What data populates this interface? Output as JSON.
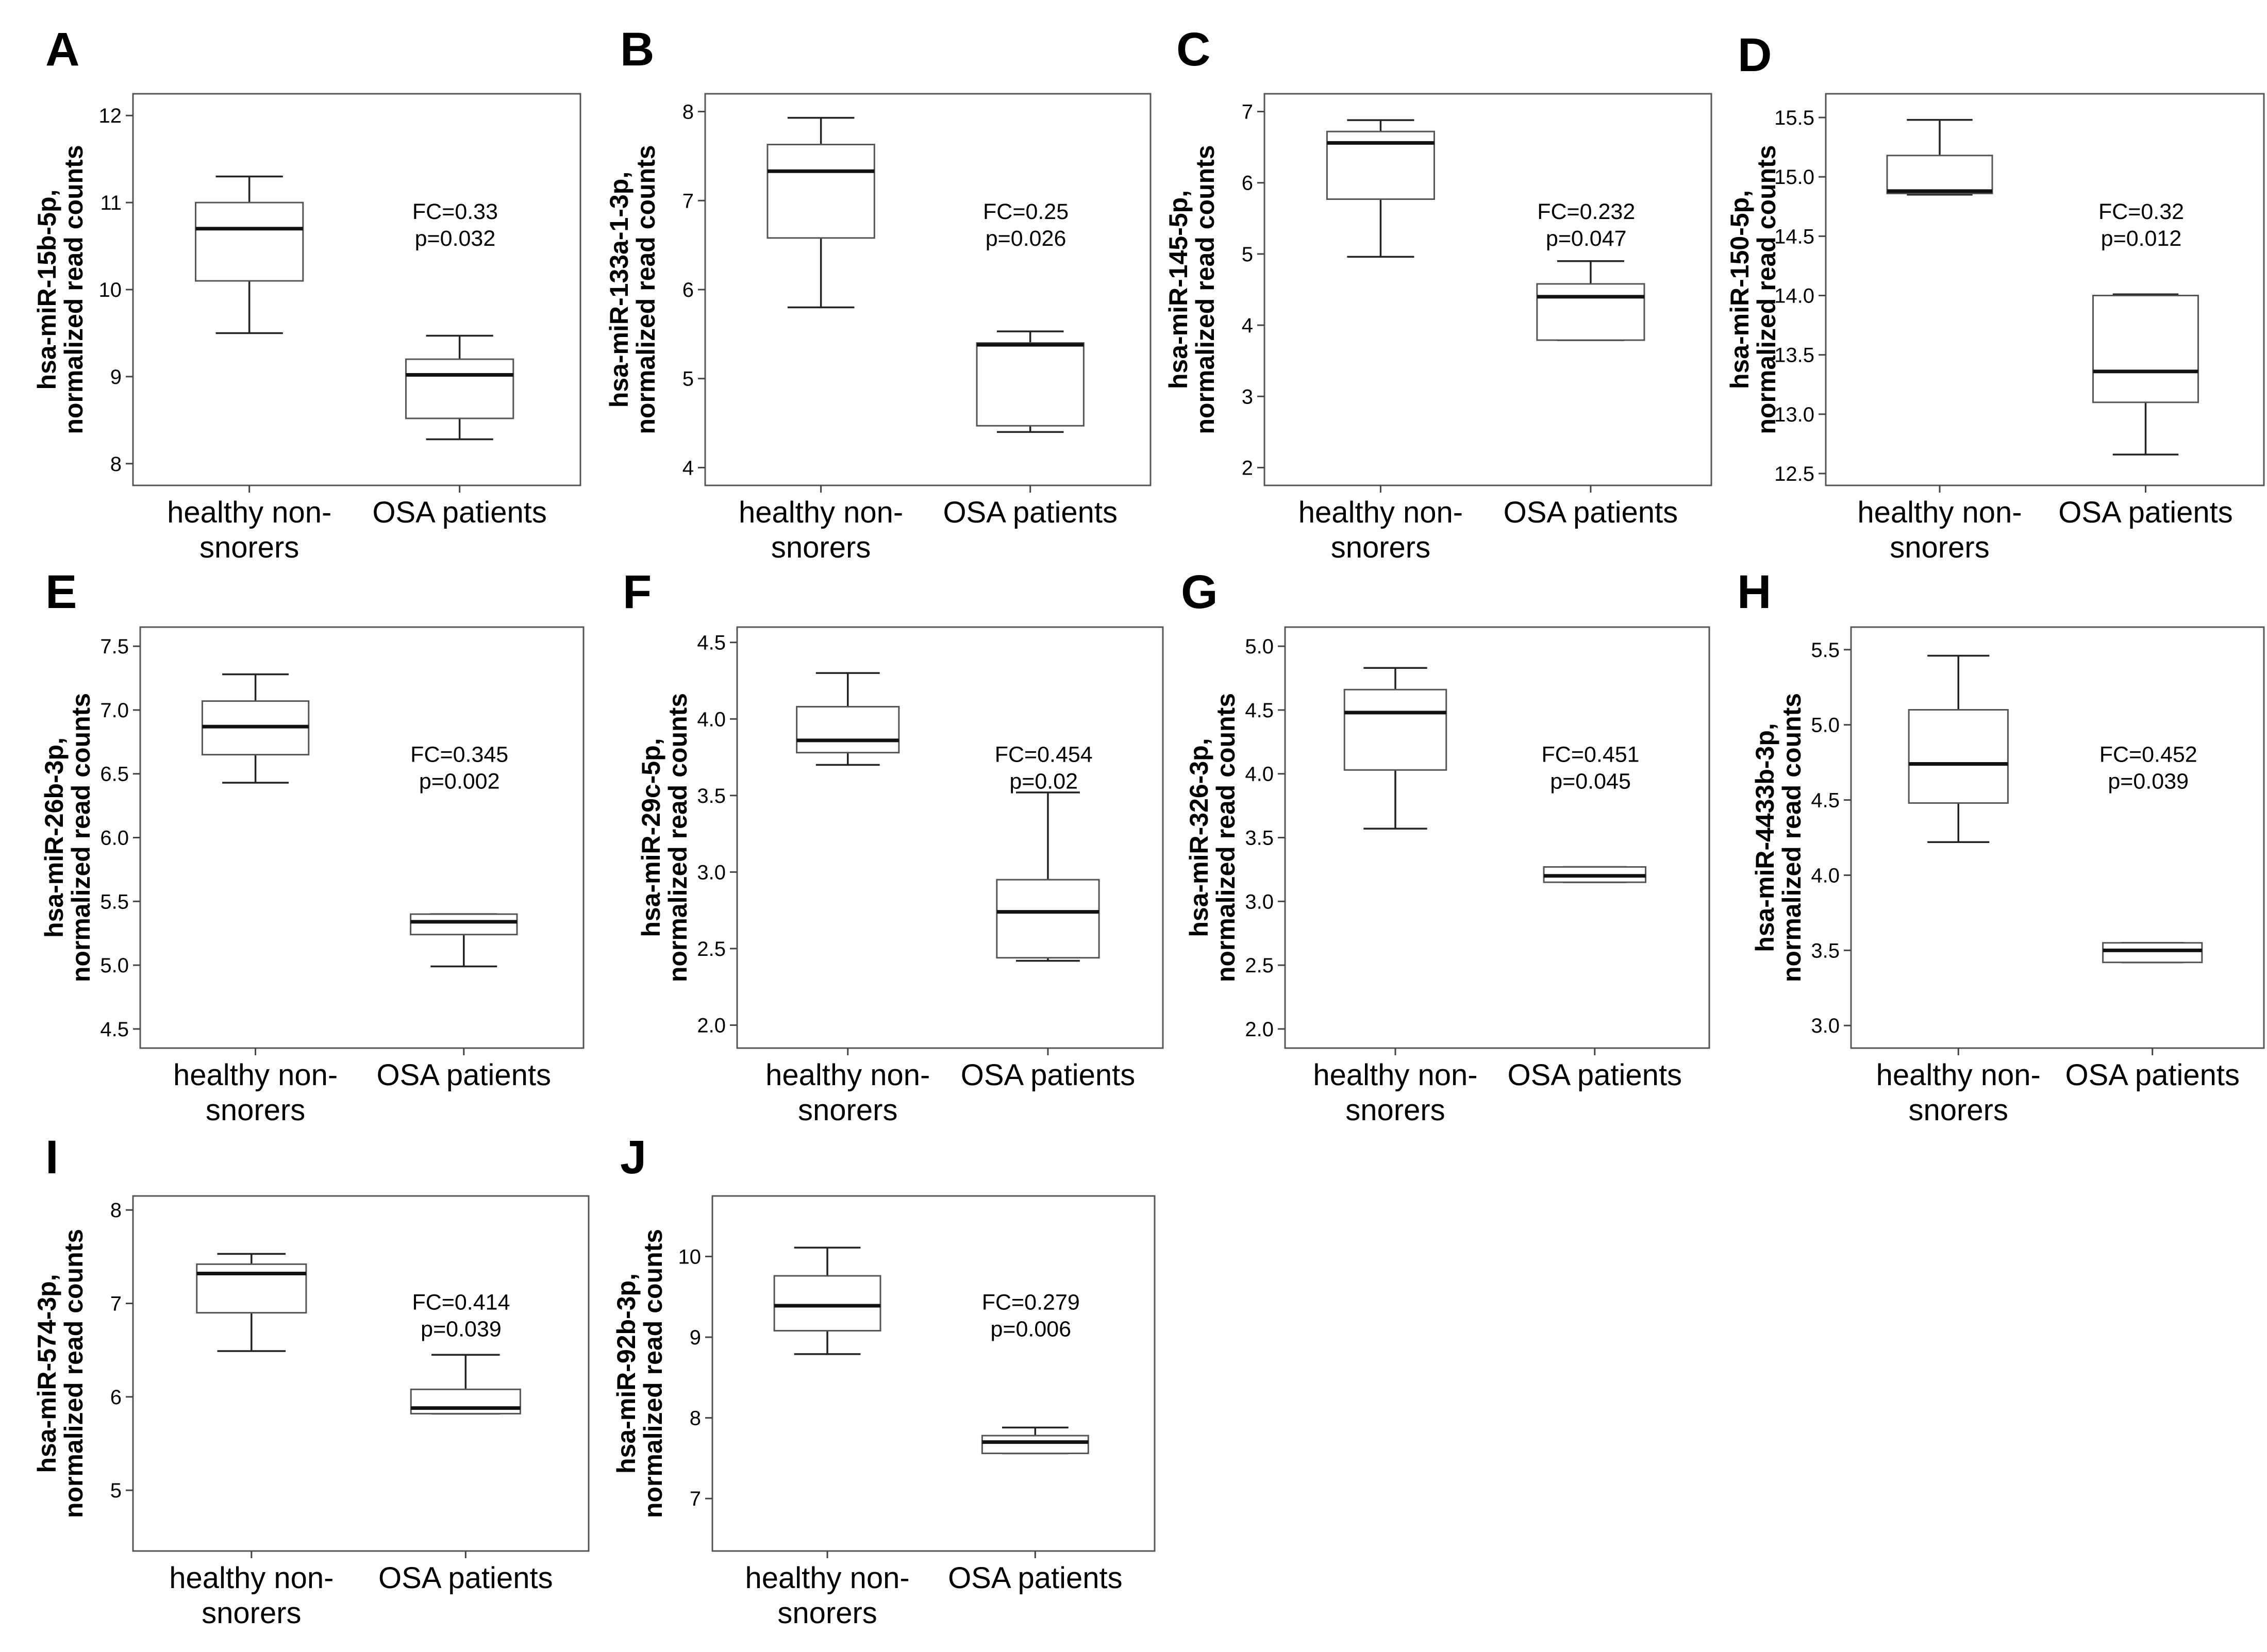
{
  "chart_data": [
    {
      "letter": "A",
      "type": "boxplot",
      "ylabel": [
        "hsa-miR-15b-5p,",
        "normalized read counts"
      ],
      "ylim": [
        7.75,
        12.25
      ],
      "yticks": [
        8,
        9,
        10,
        11,
        12
      ],
      "tick_labels": [
        "8",
        "9",
        "10",
        "11",
        "12"
      ],
      "categories": [
        "healthy non-snorers",
        "OSA patients"
      ],
      "category_lines": [
        [
          "healthy non-",
          "snorers"
        ],
        [
          "OSA patients"
        ]
      ],
      "annotation": [
        "FC=0.33",
        "p=0.032"
      ],
      "series": [
        {
          "name": "healthy non-snorers",
          "whisker_low": 9.5,
          "q1": 10.1,
          "median": 10.7,
          "q3": 11.0,
          "whisker_high": 11.3
        },
        {
          "name": "OSA patients",
          "whisker_low": 8.28,
          "q1": 8.52,
          "median": 9.02,
          "q3": 9.2,
          "whisker_high": 9.47
        }
      ]
    },
    {
      "letter": "B",
      "type": "boxplot",
      "ylabel": [
        "hsa-miR-133a-1-3p,",
        "normalized read counts"
      ],
      "ylim": [
        3.8,
        8.2
      ],
      "yticks": [
        4,
        5,
        6,
        7,
        8
      ],
      "tick_labels": [
        "4",
        "5",
        "6",
        "7",
        "8"
      ],
      "categories": [
        "healthy non-snorers",
        "OSA patients"
      ],
      "category_lines": [
        [
          "healthy non-",
          "snorers"
        ],
        [
          "OSA patients"
        ]
      ],
      "annotation": [
        "FC=0.25",
        "p=0.026"
      ],
      "series": [
        {
          "name": "healthy non-snorers",
          "whisker_low": 5.8,
          "q1": 6.58,
          "median": 7.33,
          "q3": 7.63,
          "whisker_high": 7.93
        },
        {
          "name": "OSA patients",
          "whisker_low": 4.4,
          "q1": 4.47,
          "median": 5.38,
          "q3": 5.4,
          "whisker_high": 5.53
        }
      ]
    },
    {
      "letter": "C",
      "type": "boxplot",
      "ylabel": [
        "hsa-miR-145-5p,",
        "normalized read counts"
      ],
      "ylim": [
        1.75,
        7.25
      ],
      "yticks": [
        2,
        3,
        4,
        5,
        6,
        7
      ],
      "tick_labels": [
        "2",
        "3",
        "4",
        "5",
        "6",
        "7"
      ],
      "categories": [
        "healthy non-snorers",
        "OSA patients"
      ],
      "category_lines": [
        [
          "healthy non-",
          "snorers"
        ],
        [
          "OSA patients"
        ]
      ],
      "annotation": [
        "FC=0.232",
        "p=0.047"
      ],
      "series": [
        {
          "name": "healthy non-snorers",
          "whisker_low": 4.96,
          "q1": 5.77,
          "median": 6.56,
          "q3": 6.72,
          "whisker_high": 6.88
        },
        {
          "name": "OSA patients",
          "whisker_low": 3.79,
          "q1": 3.79,
          "median": 4.4,
          "q3": 4.58,
          "whisker_high": 4.9
        }
      ]
    },
    {
      "letter": "D",
      "type": "boxplot",
      "ylabel": [
        "hsa-miR-150-5p,",
        "normalized read counts"
      ],
      "ylim": [
        12.4,
        15.7
      ],
      "yticks": [
        12.5,
        13.0,
        13.5,
        14.0,
        14.5,
        15.0,
        15.5
      ],
      "tick_labels": [
        "12.5",
        "13.0",
        "13.5",
        "14.0",
        "14.5",
        "15.0",
        "15.5"
      ],
      "categories": [
        "healthy non-snorers",
        "OSA patients"
      ],
      "category_lines": [
        [
          "healthy non-",
          "snorers"
        ],
        [
          "OSA patients"
        ]
      ],
      "annotation": [
        "FC=0.32",
        "p=0.012"
      ],
      "series": [
        {
          "name": "healthy non-snorers",
          "whisker_low": 14.85,
          "q1": 14.86,
          "median": 14.88,
          "q3": 15.18,
          "whisker_high": 15.48
        },
        {
          "name": "OSA patients",
          "whisker_low": 12.66,
          "q1": 13.1,
          "median": 13.36,
          "q3": 14.0,
          "whisker_high": 14.01
        }
      ]
    },
    {
      "letter": "E",
      "type": "boxplot",
      "ylabel": [
        "hsa-miR-26b-3p,",
        "normalized read counts"
      ],
      "ylim": [
        4.35,
        7.65
      ],
      "yticks": [
        4.5,
        5.0,
        5.5,
        6.0,
        6.5,
        7.0,
        7.5
      ],
      "tick_labels": [
        "4.5",
        "5.0",
        "5.5",
        "6.0",
        "6.5",
        "7.0",
        "7.5"
      ],
      "categories": [
        "healthy non-snorers",
        "OSA patients"
      ],
      "category_lines": [
        [
          "healthy non-",
          "snorers"
        ],
        [
          "OSA patients"
        ]
      ],
      "annotation": [
        "FC=0.345",
        "p=0.002"
      ],
      "series": [
        {
          "name": "healthy non-snorers",
          "whisker_low": 6.43,
          "q1": 6.65,
          "median": 6.87,
          "q3": 7.07,
          "whisker_high": 7.28
        },
        {
          "name": "OSA patients",
          "whisker_low": 4.99,
          "q1": 5.24,
          "median": 5.34,
          "q3": 5.4,
          "whisker_high": 5.4
        }
      ]
    },
    {
      "letter": "F",
      "type": "boxplot",
      "ylabel": [
        "hsa-miR-29c-5p,",
        "normalized read counts"
      ],
      "ylim": [
        1.85,
        4.6
      ],
      "yticks": [
        2.0,
        2.5,
        3.0,
        3.5,
        4.0,
        4.5
      ],
      "tick_labels": [
        "2.0",
        "2.5",
        "3.0",
        "3.5",
        "4.0",
        "4.5"
      ],
      "categories": [
        "healthy non-snorers",
        "OSA patients"
      ],
      "category_lines": [
        [
          "healthy non-",
          "snorers"
        ],
        [
          "OSA patients"
        ]
      ],
      "annotation": [
        "FC=0.454",
        "p=0.02"
      ],
      "series": [
        {
          "name": "healthy non-snorers",
          "whisker_low": 3.7,
          "q1": 3.78,
          "median": 3.86,
          "q3": 4.08,
          "whisker_high": 4.3
        },
        {
          "name": "OSA patients",
          "whisker_low": 2.42,
          "q1": 2.44,
          "median": 2.74,
          "q3": 2.95,
          "whisker_high": 3.52
        }
      ]
    },
    {
      "letter": "G",
      "type": "boxplot",
      "ylabel": [
        "hsa-miR-326-3p,",
        "normalized read counts"
      ],
      "ylim": [
        1.85,
        5.15
      ],
      "yticks": [
        2.0,
        2.5,
        3.0,
        3.5,
        4.0,
        4.5,
        5.0
      ],
      "tick_labels": [
        "2.0",
        "2.5",
        "3.0",
        "3.5",
        "4.0",
        "4.5",
        "5.0"
      ],
      "categories": [
        "healthy non-snorers",
        "OSA patients"
      ],
      "category_lines": [
        [
          "healthy non-",
          "snorers"
        ],
        [
          "OSA patients"
        ]
      ],
      "annotation": [
        "FC=0.451",
        "p=0.045"
      ],
      "series": [
        {
          "name": "healthy non-snorers",
          "whisker_low": 3.57,
          "q1": 4.03,
          "median": 4.48,
          "q3": 4.66,
          "whisker_high": 4.83
        },
        {
          "name": "OSA patients",
          "whisker_low": 3.15,
          "q1": 3.15,
          "median": 3.2,
          "q3": 3.27,
          "whisker_high": 3.27
        }
      ]
    },
    {
      "letter": "H",
      "type": "boxplot",
      "ylabel": [
        "hsa-miR-4433b-3p,",
        "normalized read counts"
      ],
      "ylim": [
        2.85,
        5.65
      ],
      "yticks": [
        3.0,
        3.5,
        4.0,
        4.5,
        5.0,
        5.5
      ],
      "tick_labels": [
        "3.0",
        "3.5",
        "4.0",
        "4.5",
        "5.0",
        "5.5"
      ],
      "categories": [
        "healthy non-snorers",
        "OSA patients"
      ],
      "category_lines": [
        [
          "healthy non-",
          "snorers"
        ],
        [
          "OSA patients"
        ]
      ],
      "annotation": [
        "FC=0.452",
        "p=0.039"
      ],
      "series": [
        {
          "name": "healthy non-snorers",
          "whisker_low": 4.22,
          "q1": 4.48,
          "median": 4.74,
          "q3": 5.1,
          "whisker_high": 5.46
        },
        {
          "name": "OSA patients",
          "whisker_low": 3.42,
          "q1": 3.42,
          "median": 3.5,
          "q3": 3.55,
          "whisker_high": 3.55
        }
      ]
    },
    {
      "letter": "I",
      "type": "boxplot",
      "ylabel": [
        "hsa-miR-574-3p,",
        "normalized read counts"
      ],
      "ylim": [
        4.35,
        8.15
      ],
      "yticks": [
        5,
        6,
        7,
        8
      ],
      "tick_labels": [
        "5",
        "6",
        "7",
        "8"
      ],
      "categories": [
        "healthy non-snorers",
        "OSA patients"
      ],
      "category_lines": [
        [
          "healthy non-",
          "snorers"
        ],
        [
          "OSA patients"
        ]
      ],
      "annotation": [
        "FC=0.414",
        "p=0.039"
      ],
      "series": [
        {
          "name": "healthy non-snorers",
          "whisker_low": 6.49,
          "q1": 6.9,
          "median": 7.32,
          "q3": 7.42,
          "whisker_high": 7.53
        },
        {
          "name": "OSA patients",
          "whisker_low": 5.82,
          "q1": 5.82,
          "median": 5.88,
          "q3": 6.08,
          "whisker_high": 6.45
        }
      ]
    },
    {
      "letter": "J",
      "type": "boxplot",
      "ylabel": [
        "hsa-miR-92b-3p,",
        "normalized read counts"
      ],
      "ylim": [
        6.35,
        10.75
      ],
      "yticks": [
        7,
        8,
        9,
        10
      ],
      "tick_labels": [
        "7",
        "8",
        "9",
        "10"
      ],
      "categories": [
        "healthy non-snorers",
        "OSA patients"
      ],
      "category_lines": [
        [
          "healthy non-",
          "snorers"
        ],
        [
          "OSA patients"
        ]
      ],
      "annotation": [
        "FC=0.279",
        "p=0.006"
      ],
      "series": [
        {
          "name": "healthy non-snorers",
          "whisker_low": 8.79,
          "q1": 9.08,
          "median": 9.39,
          "q3": 9.76,
          "whisker_high": 10.11
        },
        {
          "name": "OSA patients",
          "whisker_low": 7.56,
          "q1": 7.56,
          "median": 7.7,
          "q3": 7.78,
          "whisker_high": 7.88
        }
      ]
    }
  ]
}
